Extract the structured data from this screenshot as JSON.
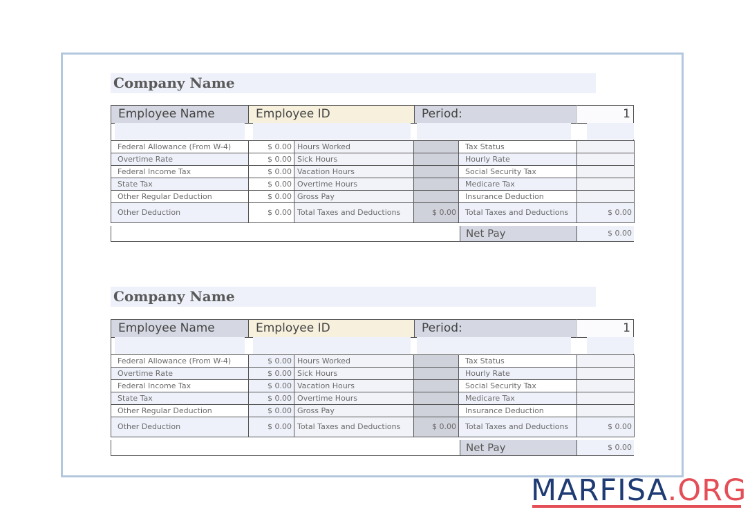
{
  "stubs": [
    {
      "company": "Company Name",
      "header": {
        "name": "Employee Name",
        "id": "Employee ID",
        "period": "Period:",
        "number": "1"
      },
      "rows": [
        {
          "l1": "Federal Allowance (From W-4)",
          "v1": "$ 0.00",
          "l2": "Hours Worked",
          "v2": "",
          "l3": "Tax Status",
          "v3": ""
        },
        {
          "l1": "Overtime Rate",
          "v1": "$ 0.00",
          "l2": "Sick Hours",
          "v2": "",
          "l3": "Hourly Rate",
          "v3": ""
        },
        {
          "l1": "Federal Income Tax",
          "v1": "$ 0.00",
          "l2": "Vacation Hours",
          "v2": "",
          "l3": "Social Security Tax",
          "v3": ""
        },
        {
          "l1": "State Tax",
          "v1": "$ 0.00",
          "l2": "Overtime Hours",
          "v2": "",
          "l3": "Medicare Tax",
          "v3": ""
        },
        {
          "l1": "Other Regular Deduction",
          "v1": "$ 0.00",
          "l2": "Gross Pay",
          "v2": "",
          "l3": "Insurance Deduction",
          "v3": ""
        },
        {
          "l1": "Other Deduction",
          "v1": "$ 0.00",
          "l2": "Total Taxes and Deductions",
          "v2": "$ 0.00",
          "l3": "Total Taxes and  Deductions",
          "v3": "$ 0.00"
        }
      ],
      "net_pay_label": "Net Pay",
      "net_pay_value": "$ 0.00"
    },
    {
      "company": "Company Name",
      "header": {
        "name": "Employee Name",
        "id": "Employee ID",
        "period": "Period:",
        "number": "1"
      },
      "rows": [
        {
          "l1": "Federal Allowance (From W-4)",
          "v1": "$ 0.00",
          "l2": "Hours Worked",
          "v2": "",
          "l3": "Tax Status",
          "v3": ""
        },
        {
          "l1": "Overtime Rate",
          "v1": "$ 0.00",
          "l2": "Sick Hours",
          "v2": "",
          "l3": "Hourly Rate",
          "v3": ""
        },
        {
          "l1": "Federal Income Tax",
          "v1": "$ 0.00",
          "l2": "Vacation Hours",
          "v2": "",
          "l3": "Social Security Tax",
          "v3": ""
        },
        {
          "l1": "State Tax",
          "v1": "$ 0.00",
          "l2": "Overtime Hours",
          "v2": "",
          "l3": "Medicare Tax",
          "v3": ""
        },
        {
          "l1": "Other Regular Deduction",
          "v1": "$ 0.00",
          "l2": "Gross Pay",
          "v2": "",
          "l3": "Insurance Deduction",
          "v3": ""
        },
        {
          "l1": "Other Deduction",
          "v1": "$ 0.00",
          "l2": "Total Taxes and Deductions",
          "v2": "$ 0.00",
          "l3": "Total Taxes and  Deductions",
          "v3": "$ 0.00"
        }
      ],
      "net_pay_label": "Net Pay",
      "net_pay_value": "$ 0.00"
    }
  ],
  "watermark": {
    "part1": "MARFISA",
    "part2": ".ORG"
  },
  "colors": {
    "frame": "#b3c7de",
    "brand_blue": "#1f3b74",
    "brand_red": "#e44e57"
  }
}
